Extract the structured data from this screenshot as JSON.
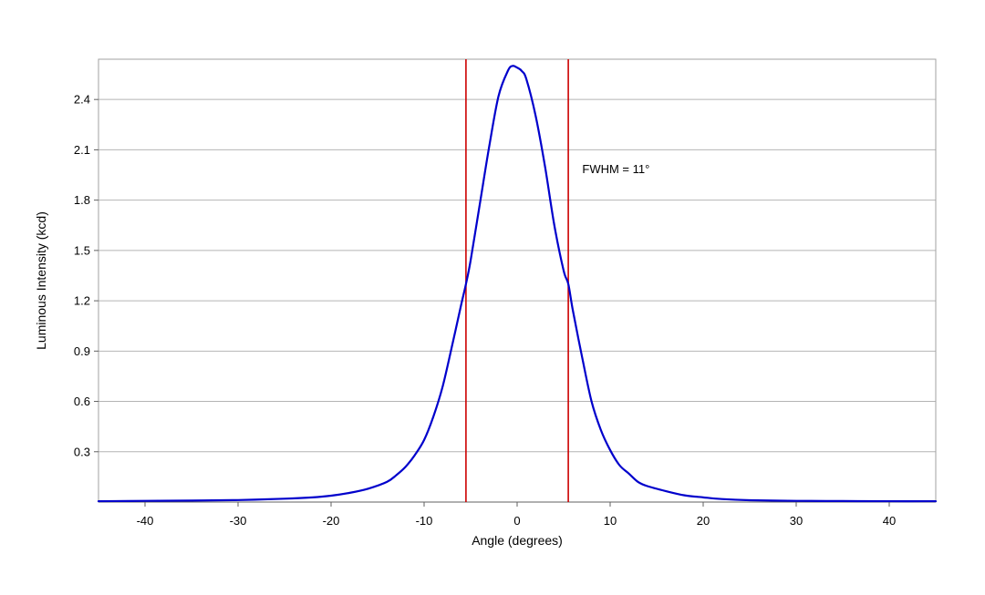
{
  "chart_data": {
    "type": "line",
    "title": "",
    "xlabel": "Angle (degrees)",
    "ylabel": "Luminous Intensity (kcd)",
    "xlim": [
      -45,
      45
    ],
    "ylim": [
      0,
      2.64
    ],
    "xticks": [
      -40,
      -30,
      -20,
      -10,
      0,
      10,
      20,
      30,
      40
    ],
    "yticks": [
      0.3,
      0.6,
      0.9,
      1.2,
      1.5,
      1.8,
      2.1,
      2.4
    ],
    "grid": "horizontal",
    "series": [
      {
        "color": "#0000cc",
        "x": [
          -45,
          -40,
          -35,
          -30,
          -25,
          -22,
          -20,
          -18,
          -16,
          -14,
          -13,
          -12,
          -11,
          -10,
          -9,
          -8,
          -7,
          -6,
          -5.5,
          -5,
          -4,
          -3,
          -2,
          -1,
          -0.5,
          0,
          0.5,
          1,
          2,
          3,
          4,
          5,
          5.5,
          6,
          7,
          8,
          9,
          10,
          11,
          12,
          13,
          14,
          16,
          18,
          20,
          22,
          25,
          30,
          35,
          40,
          45
        ],
        "y": [
          0.005,
          0.007,
          0.009,
          0.012,
          0.02,
          0.028,
          0.038,
          0.055,
          0.08,
          0.12,
          0.16,
          0.21,
          0.28,
          0.37,
          0.51,
          0.69,
          0.93,
          1.18,
          1.3,
          1.44,
          1.78,
          2.12,
          2.42,
          2.57,
          2.6,
          2.59,
          2.57,
          2.52,
          2.3,
          2.0,
          1.65,
          1.38,
          1.3,
          1.14,
          0.86,
          0.6,
          0.43,
          0.31,
          0.22,
          0.17,
          0.12,
          0.095,
          0.065,
          0.04,
          0.028,
          0.018,
          0.011,
          0.007,
          0.006,
          0.005,
          0.005
        ]
      }
    ],
    "reference_lines": [
      {
        "axis": "x",
        "value": -5.5,
        "color": "#cc0000"
      },
      {
        "axis": "x",
        "value": 5.5,
        "color": "#cc0000"
      }
    ],
    "annotations": [
      {
        "text": "FWHM = 11°",
        "x": 7,
        "y": 1.96
      }
    ]
  }
}
